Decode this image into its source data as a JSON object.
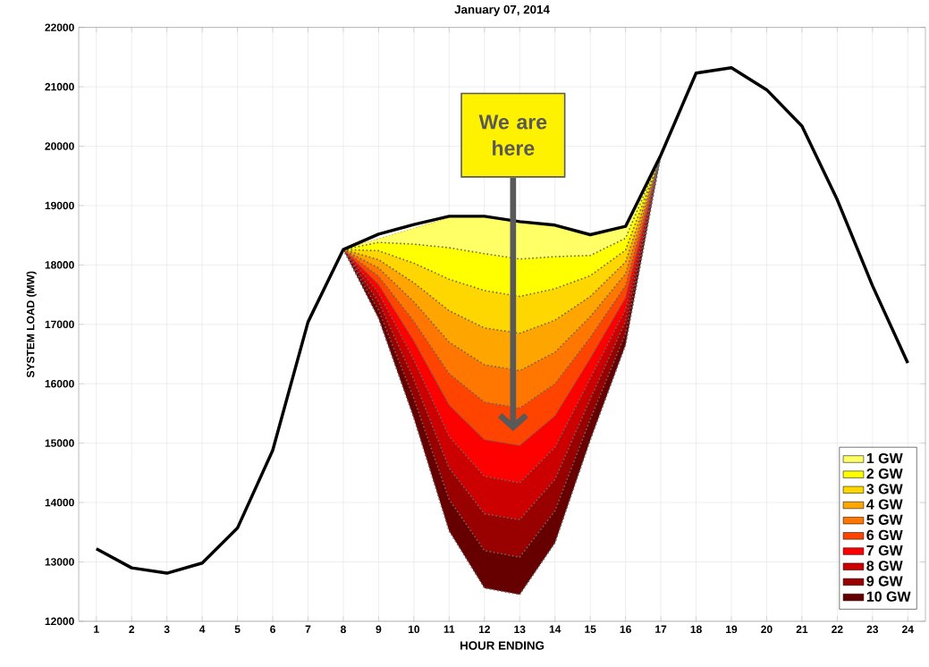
{
  "chart_data": {
    "type": "line",
    "title": "January 07, 2014",
    "xlabel": "HOUR ENDING",
    "ylabel": "SYSTEM LOAD (MW)",
    "annotations": [
      "We are here"
    ],
    "xlim": [
      0.5,
      24.5
    ],
    "xticks": [
      1,
      2,
      3,
      4,
      5,
      6,
      7,
      8,
      9,
      10,
      11,
      12,
      13,
      14,
      15,
      16,
      17,
      18,
      19,
      20,
      21,
      22,
      23,
      24
    ],
    "ylim": [
      12000,
      22000
    ],
    "yticks": [
      12000,
      13000,
      14000,
      15000,
      16000,
      17000,
      18000,
      19000,
      20000,
      21000,
      22000
    ],
    "grid": true,
    "legend": "bottom right",
    "series": [
      {
        "color": "#000000",
        "x": [
          1,
          2,
          3,
          4,
          5,
          6,
          7,
          8,
          9,
          10,
          11,
          12,
          13,
          14,
          15,
          16,
          17,
          18,
          19,
          20,
          21,
          22,
          23,
          24
        ],
        "values": [
          13220,
          12900,
          12810,
          12980,
          13570,
          14880,
          17040,
          18260,
          18520,
          18680,
          18820,
          18820,
          18730,
          18670,
          18510,
          18650,
          19850,
          21230,
          21320,
          20950,
          20340,
          19100,
          17650,
          16350
        ]
      },
      {
        "type": "area",
        "name": "1 GW",
        "color": "#ffff66",
        "line_style": "dotted",
        "x": [
          8,
          9,
          10,
          11,
          12,
          13,
          14,
          15,
          16,
          17
        ],
        "values": [
          18260,
          18380,
          18350,
          18290,
          18190,
          18100,
          18140,
          18160,
          18450,
          19850
        ]
      },
      {
        "type": "area",
        "name": "2 GW",
        "color": "#ffff00",
        "line_style": "dotted",
        "x": [
          8,
          9,
          10,
          11,
          12,
          13,
          14,
          15,
          16,
          17
        ],
        "values": [
          18260,
          18240,
          18030,
          17760,
          17570,
          17470,
          17600,
          17820,
          18250,
          19850
        ]
      },
      {
        "type": "area",
        "name": "3 GW",
        "color": "#ffd700",
        "line_style": "dotted",
        "x": [
          8,
          9,
          10,
          11,
          12,
          13,
          14,
          15,
          16,
          17
        ],
        "values": [
          18260,
          18090,
          17700,
          17230,
          16940,
          16850,
          17070,
          17470,
          18050,
          19850
        ]
      },
      {
        "type": "area",
        "name": "4 GW",
        "color": "#ffa500",
        "line_style": "dotted",
        "x": [
          8,
          9,
          10,
          11,
          12,
          13,
          14,
          15,
          16,
          17
        ],
        "values": [
          18260,
          17950,
          17380,
          16700,
          16320,
          16220,
          16530,
          17130,
          17850,
          19850
        ]
      },
      {
        "type": "area",
        "name": "5 GW",
        "color": "#ff7700",
        "line_style": "dotted",
        "x": [
          8,
          9,
          10,
          11,
          12,
          13,
          14,
          15,
          16,
          17
        ],
        "values": [
          18260,
          17810,
          17050,
          16170,
          15690,
          15590,
          16000,
          16780,
          17650,
          19850
        ]
      },
      {
        "type": "area",
        "name": "6 GW",
        "color": "#ff4400",
        "line_style": "dotted",
        "x": [
          8,
          9,
          10,
          11,
          12,
          13,
          14,
          15,
          16,
          17
        ],
        "values": [
          18260,
          17670,
          16720,
          15640,
          15060,
          14960,
          15460,
          16430,
          17450,
          19850
        ]
      },
      {
        "type": "area",
        "name": "7 GW",
        "color": "#ff0000",
        "line_style": "dotted",
        "x": [
          8,
          9,
          10,
          11,
          12,
          13,
          14,
          15,
          16,
          17
        ],
        "values": [
          18260,
          17530,
          16400,
          15110,
          14440,
          14330,
          14930,
          16090,
          17250,
          19850
        ]
      },
      {
        "type": "area",
        "name": "8 GW",
        "color": "#cc0000",
        "line_style": "dotted",
        "x": [
          8,
          9,
          10,
          11,
          12,
          13,
          14,
          15,
          16,
          17
        ],
        "values": [
          18260,
          17380,
          16070,
          14580,
          13810,
          13710,
          14390,
          15740,
          17050,
          19850
        ]
      },
      {
        "type": "area",
        "name": "9 GW",
        "color": "#990000",
        "line_style": "dotted",
        "x": [
          8,
          9,
          10,
          11,
          12,
          13,
          14,
          15,
          16,
          17
        ],
        "values": [
          18260,
          17240,
          15750,
          14050,
          13190,
          13080,
          13860,
          15400,
          16850,
          19850
        ]
      },
      {
        "type": "area",
        "name": "10 GW",
        "color": "#660000",
        "line_style": "dotted",
        "x": [
          8,
          9,
          10,
          11,
          12,
          13,
          14,
          15,
          16,
          17
        ],
        "values": [
          18260,
          17100,
          15420,
          13520,
          12560,
          12450,
          13320,
          15050,
          16650,
          19850
        ]
      }
    ]
  }
}
